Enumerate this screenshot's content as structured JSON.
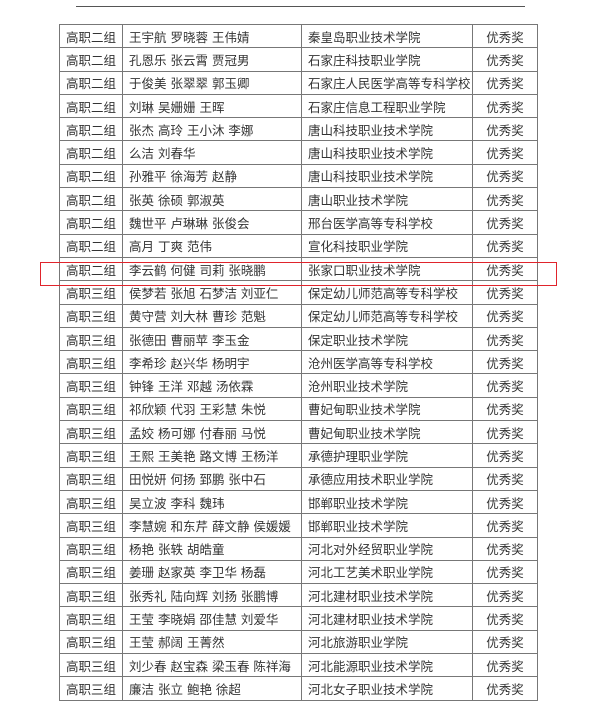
{
  "highlight_color": "#e0242c",
  "rows": [
    {
      "group": "高职二组",
      "names": "王宇航  罗晓蓉  王伟婧",
      "school": "秦皇岛职业技术学院",
      "award": "优秀奖"
    },
    {
      "group": "高职二组",
      "names": "孔恩乐  张云霄  贾冠男",
      "school": "石家庄科技职业学院",
      "award": "优秀奖"
    },
    {
      "group": "高职二组",
      "names": "于俊美  张翠翠  郭玉卿",
      "school": "石家庄人民医学高等专科学校",
      "award": "优秀奖"
    },
    {
      "group": "高职二组",
      "names": "刘琳  吴姗姗  王晖",
      "school": "石家庄信息工程职业学院",
      "award": "优秀奖"
    },
    {
      "group": "高职二组",
      "names": "张杰  高玲  王小沐  李娜",
      "school": "唐山科技职业技术学院",
      "award": "优秀奖"
    },
    {
      "group": "高职二组",
      "names": "么洁  刘春华",
      "school": "唐山科技职业技术学院",
      "award": "优秀奖"
    },
    {
      "group": "高职二组",
      "names": "孙雅平  徐海芳  赵静",
      "school": "唐山科技职业技术学院",
      "award": "优秀奖"
    },
    {
      "group": "高职二组",
      "names": "张英  徐硕  郭淑英",
      "school": "唐山职业技术学院",
      "award": "优秀奖"
    },
    {
      "group": "高职二组",
      "names": "魏世平  卢琳琳  张俊会",
      "school": "邢台医学高等专科学校",
      "award": "优秀奖"
    },
    {
      "group": "高职二组",
      "names": "高月  丁爽  范伟",
      "school": "宣化科技职业学院",
      "award": "优秀奖"
    },
    {
      "group": "高职二组",
      "names": "李云鹤  何健  司莉  张晓鹏",
      "school": "张家口职业技术学院",
      "award": "优秀奖"
    },
    {
      "group": "高职三组",
      "names": "侯梦若  张旭  石梦洁  刘亚仁",
      "school": "保定幼儿师范高等专科学校",
      "award": "优秀奖"
    },
    {
      "group": "高职三组",
      "names": "黄守营  刘大林  曹珍  范魁",
      "school": "保定幼儿师范高等专科学校",
      "award": "优秀奖"
    },
    {
      "group": "高职三组",
      "names": "张德田  曹丽苹  李玉金",
      "school": "保定职业技术学院",
      "award": "优秀奖"
    },
    {
      "group": "高职三组",
      "names": "李希珍  赵兴华  杨明宇",
      "school": "沧州医学高等专科学校",
      "award": "优秀奖"
    },
    {
      "group": "高职三组",
      "names": "钟锋  王洋  邓越  汤依霖",
      "school": "沧州职业技术学院",
      "award": "优秀奖"
    },
    {
      "group": "高职三组",
      "names": "祁欣颖  代羽  王彩慧  朱悦",
      "school": "曹妃甸职业技术学院",
      "award": "优秀奖"
    },
    {
      "group": "高职三组",
      "names": "孟姣  杨可娜  付春丽  马悦",
      "school": "曹妃甸职业技术学院",
      "award": "优秀奖"
    },
    {
      "group": "高职三组",
      "names": "王熙  王美艳  路文博  王杨洋",
      "school": "承德护理职业学院",
      "award": "优秀奖"
    },
    {
      "group": "高职三组",
      "names": "田悦妍  何扬  郅鹏  张中石",
      "school": "承德应用技术职业学院",
      "award": "优秀奖"
    },
    {
      "group": "高职三组",
      "names": "吴立波  李科  魏玮",
      "school": "邯郸职业技术学院",
      "award": "优秀奖"
    },
    {
      "group": "高职三组",
      "names": "李慧婉  和东芹  薛文静  侯媛媛",
      "school": "邯郸职业技术学院",
      "award": "优秀奖"
    },
    {
      "group": "高职三组",
      "names": "杨艳  张轶  胡皓童",
      "school": "河北对外经贸职业学院",
      "award": "优秀奖"
    },
    {
      "group": "高职三组",
      "names": "姜珊  赵家英  李卫华  杨磊",
      "school": "河北工艺美术职业学院",
      "award": "优秀奖"
    },
    {
      "group": "高职三组",
      "names": "张秀礼  陆向辉  刘扬  张鹏博",
      "school": "河北建材职业技术学院",
      "award": "优秀奖"
    },
    {
      "group": "高职三组",
      "names": "王莹  李晓娟  邵佳慧  刘爱华",
      "school": "河北建材职业技术学院",
      "award": "优秀奖"
    },
    {
      "group": "高职三组",
      "names": "王莹  郝阔  王菁然",
      "school": "河北旅游职业学院",
      "award": "优秀奖"
    },
    {
      "group": "高职三组",
      "names": "刘少春  赵宝森  梁玉春  陈祥海",
      "school": "河北能源职业技术学院",
      "award": "优秀奖"
    },
    {
      "group": "高职三组",
      "names": "廉洁  张立  鲍艳  徐超",
      "school": "河北女子职业技术学院",
      "award": "优秀奖"
    }
  ]
}
